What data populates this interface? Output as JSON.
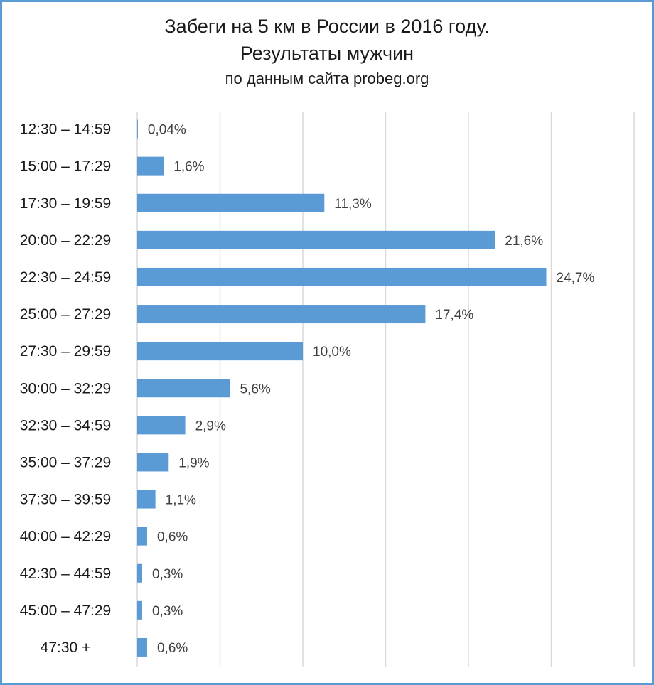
{
  "chart_data": {
    "type": "bar",
    "orientation": "horizontal",
    "title": "Забеги на 5 км в России в 2016 году.",
    "title_line2": "Результаты мужчин",
    "subtitle": "по данным сайта probeg.org",
    "categories": [
      "12:30 – 14:59",
      "15:00 – 17:29",
      "17:30 – 19:59",
      "20:00 – 22:29",
      "22:30 – 24:59",
      "25:00 – 27:29",
      "27:30 – 29:59",
      "30:00 – 32:29",
      "32:30 – 34:59",
      "35:00 – 37:29",
      "37:30 – 39:59",
      "40:00 – 42:29",
      "42:30 – 44:59",
      "45:00 – 47:29",
      "47:30 +"
    ],
    "values": [
      0.04,
      1.6,
      11.3,
      21.6,
      24.7,
      17.4,
      10.0,
      5.6,
      2.9,
      1.9,
      1.1,
      0.6,
      0.3,
      0.3,
      0.6
    ],
    "value_labels": [
      "0,04%",
      "1,6%",
      "11,3%",
      "21,6%",
      "24,7%",
      "17,4%",
      "10,0%",
      "5,6%",
      "2,9%",
      "1,9%",
      "1,1%",
      "0,6%",
      "0,3%",
      "0,3%",
      "0,6%"
    ],
    "xlim": [
      0,
      30
    ],
    "grid_step": 5,
    "grid": true,
    "legend": "none",
    "bar_color": "#5b9bd5",
    "grid_color": "#d9d9d9"
  }
}
